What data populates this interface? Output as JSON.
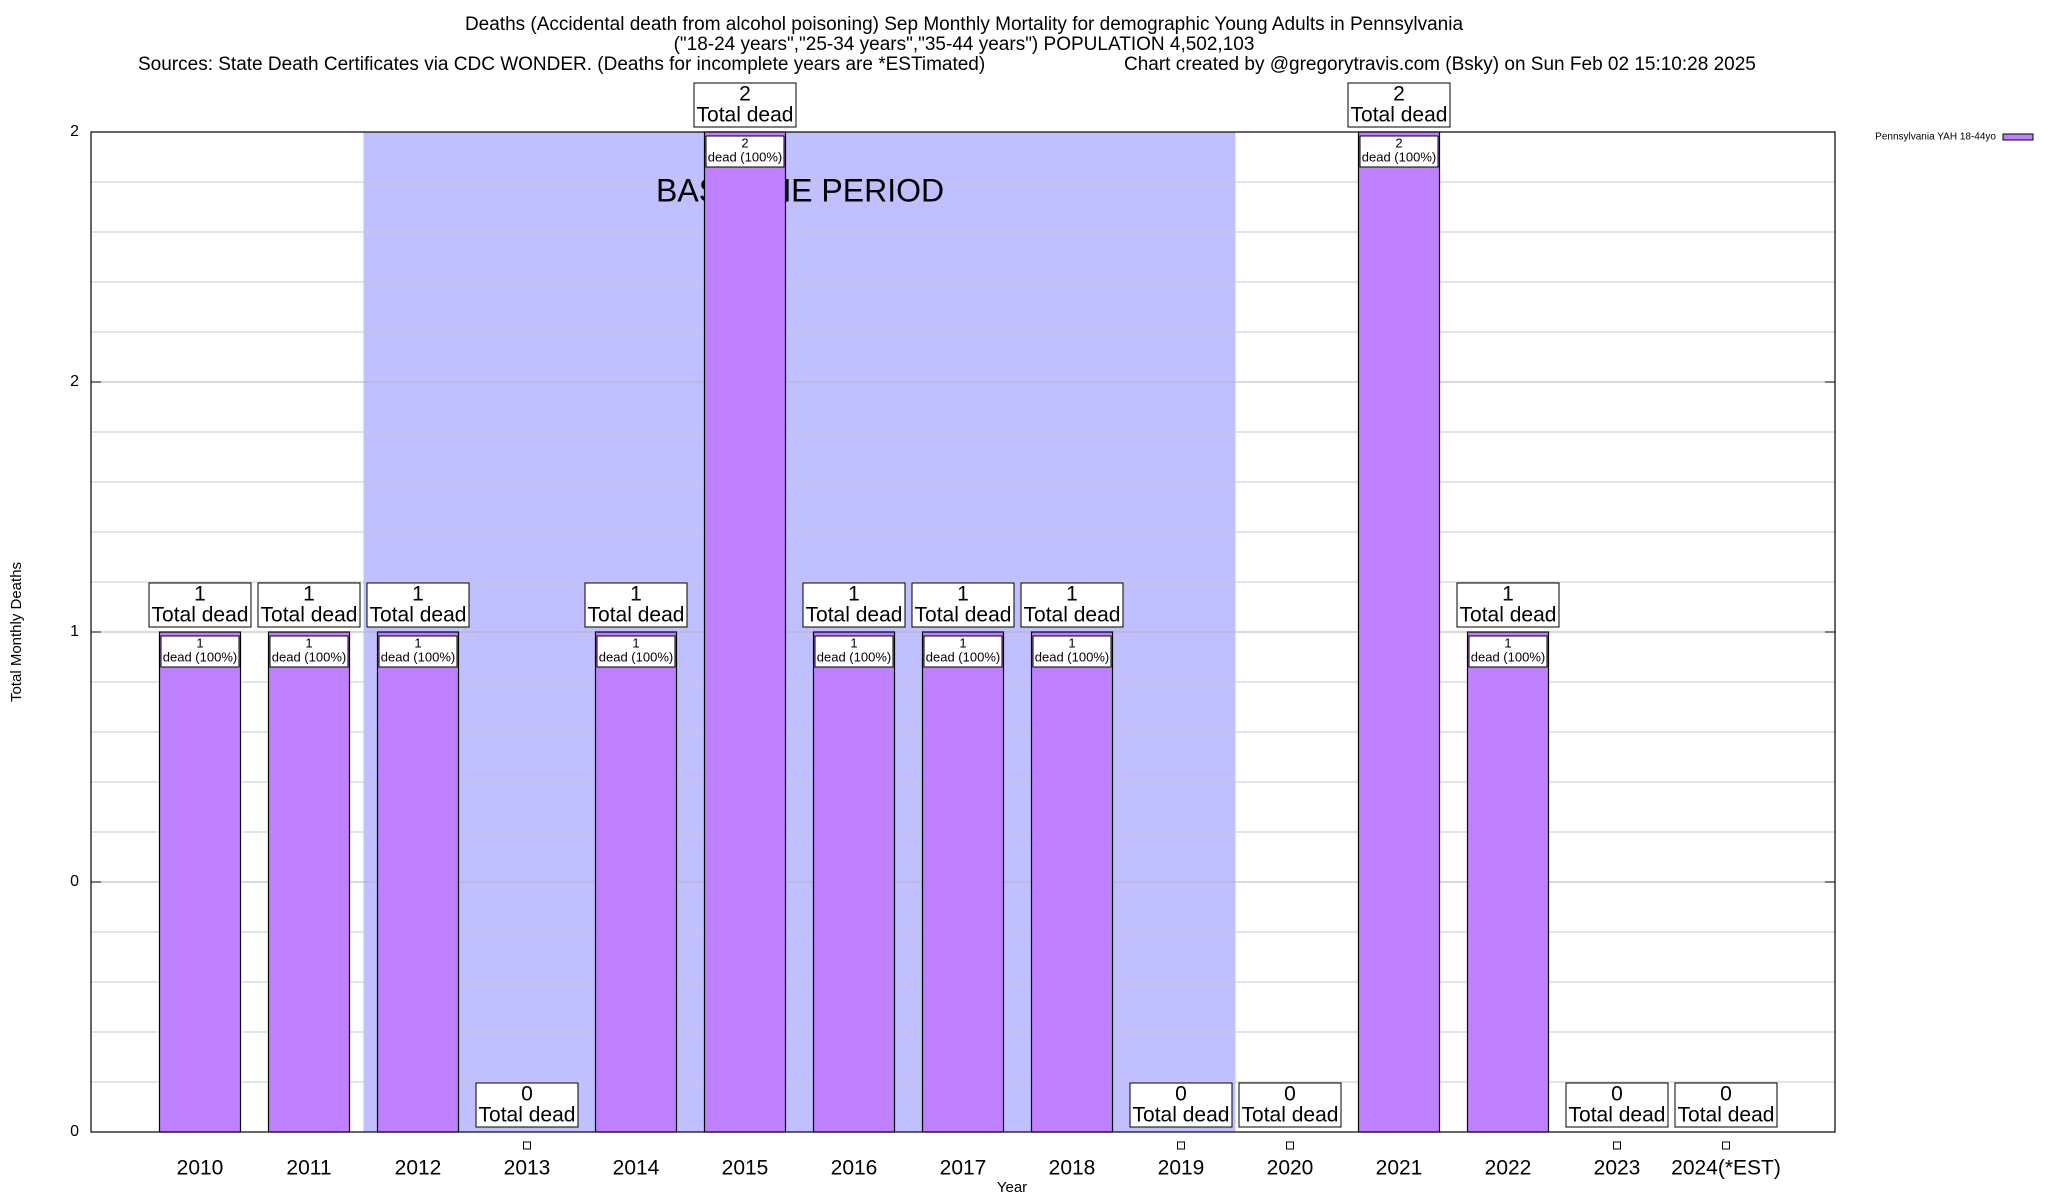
{
  "chart_data": {
    "type": "bar",
    "title": "Deaths (Accidental death from alcohol poisoning) Sep Monthly Mortality for demographic Young Adults in Pennsylvania",
    "subtitle": "(\"18-24 years\",\"25-34 years\",\"35-44 years\") POPULATION 4,502,103",
    "source": "Sources: State Death Certificates via CDC WONDER. (Deaths for incomplete years are *ESTimated)",
    "credit": "Chart created by @gregorytravis.com (Bsky) on Sun Feb 02 15:10:28 2025",
    "x_label": "Year",
    "y_label": "Total Monthly Deaths",
    "categories": [
      "2010",
      "2011",
      "2012",
      "2013",
      "2014",
      "2015",
      "2016",
      "2017",
      "2018",
      "2019",
      "2020",
      "2021",
      "2022",
      "2023",
      "2024(*EST)"
    ],
    "series": [
      {
        "name": "Pennsylvania YAH 18-44yo",
        "color": "#bf80ff",
        "values": [
          1,
          1,
          1,
          0,
          1,
          2,
          1,
          1,
          1,
          0,
          0,
          2,
          1,
          0,
          0
        ]
      }
    ],
    "total_label": "Total dead",
    "share_label": "dead (100%)",
    "baseline": {
      "label": "BASELINE PERIOD",
      "from": "2012",
      "to": "2019",
      "color": "#c0c0ff"
    },
    "ylim": [
      0,
      2
    ],
    "yticks": [
      0,
      {
        "value": 0.5,
        "label": "0"
      },
      1,
      {
        "value": 1.5,
        "label": "2"
      },
      2
    ],
    "minor_yticks": [
      0.1,
      0.2,
      0.3,
      0.4,
      0.6,
      0.7,
      0.8,
      0.9,
      1.1,
      1.2,
      1.3,
      1.4,
      1.6,
      1.7,
      1.8,
      1.9
    ],
    "grid": true,
    "legend": "top-right"
  }
}
